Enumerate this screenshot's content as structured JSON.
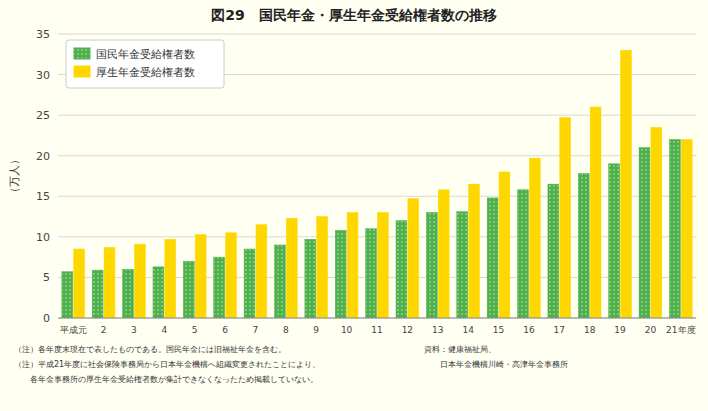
{
  "chart_data": {
    "type": "bar",
    "title": "図29　国民年金・厚生年金受給権者数の推移",
    "ylabel": "（万人）",
    "categories": [
      "平成元",
      "2",
      "3",
      "4",
      "5",
      "6",
      "7",
      "8",
      "9",
      "10",
      "11",
      "12",
      "13",
      "14",
      "15",
      "16",
      "17",
      "18",
      "19",
      "20",
      "21年度"
    ],
    "series": [
      {
        "name": "国民年金受給権者数",
        "color": "#4caf50",
        "values": [
          5.7,
          5.9,
          6.0,
          6.3,
          7.0,
          7.5,
          8.5,
          9.0,
          9.7,
          10.8,
          11.0,
          12.0,
          13.0,
          13.1,
          14.8,
          15.8,
          16.5,
          17.8,
          19.0,
          21.0,
          22.0
        ]
      },
      {
        "name": "厚生年金受給権者数",
        "color": "#ffd700",
        "values": [
          8.5,
          8.7,
          9.1,
          9.7,
          10.3,
          10.5,
          11.5,
          12.3,
          12.5,
          13.0,
          13.0,
          14.7,
          15.8,
          16.5,
          18.0,
          19.7,
          24.7,
          26.0,
          33.0,
          23.5,
          22.0
        ]
      }
    ],
    "ylim": [
      0,
      35
    ],
    "yticks": [
      0,
      5,
      10,
      15,
      20,
      25,
      30,
      35
    ],
    "grid": true,
    "legend": "upper left",
    "annotations": [
      "（注）各年度末現在で表したものである。国民年金には旧福祉年金を含む。",
      "（注）平成21年度に社会保険事務局から日本年金機構へ組織変更されたことにより、",
      "　　各年金事務所の厚生年金受給権者数が集計できなくなったため掲載していない。",
      "資料：健康福祉局、",
      "　　日本年金機構川崎・高津年金事務所"
    ]
  }
}
